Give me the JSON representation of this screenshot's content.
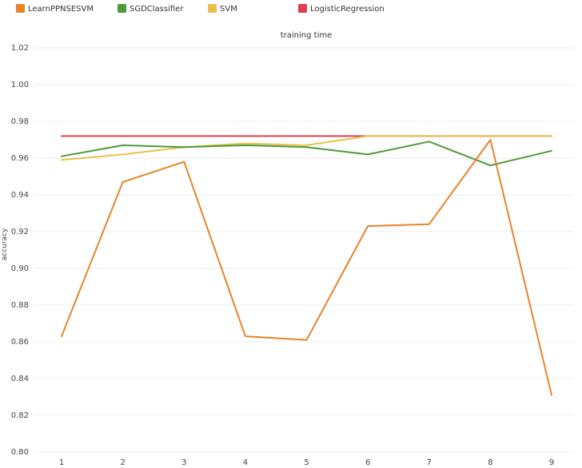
{
  "chart_data": {
    "type": "line",
    "title": "training time",
    "xlabel": "",
    "ylabel": "accuracy",
    "x": [
      1,
      2,
      3,
      4,
      5,
      6,
      7,
      8,
      9
    ],
    "ylim": [
      0.8,
      1.02
    ],
    "yticks": [
      "0.80",
      "0.82",
      "0.84",
      "0.86",
      "0.88",
      "0.90",
      "0.92",
      "0.94",
      "0.96",
      "0.98",
      "1.00",
      "1.02"
    ],
    "xticks": [
      "1",
      "2",
      "3",
      "4",
      "5",
      "6",
      "7",
      "8",
      "9"
    ],
    "grid": true,
    "legend_position": "top-left",
    "series": [
      {
        "name": "LearnPPNSESVM",
        "color": "#e8832a",
        "values": [
          0.863,
          0.947,
          0.958,
          0.863,
          0.861,
          0.923,
          0.924,
          0.97,
          0.831
        ]
      },
      {
        "name": "SGDClassifier",
        "color": "#4f9a3a",
        "values": [
          0.961,
          0.967,
          0.966,
          0.967,
          0.966,
          0.962,
          0.969,
          0.956,
          0.964
        ]
      },
      {
        "name": "SVM",
        "color": "#e8c14a",
        "values": [
          0.959,
          0.962,
          0.966,
          0.968,
          0.967,
          0.972,
          0.972,
          0.972,
          0.972
        ]
      },
      {
        "name": "LogisticRegression",
        "color": "#d8424d",
        "values": [
          0.972,
          0.972,
          0.972,
          0.972,
          0.972,
          0.972,
          0.972,
          0.972,
          0.972
        ]
      }
    ]
  }
}
